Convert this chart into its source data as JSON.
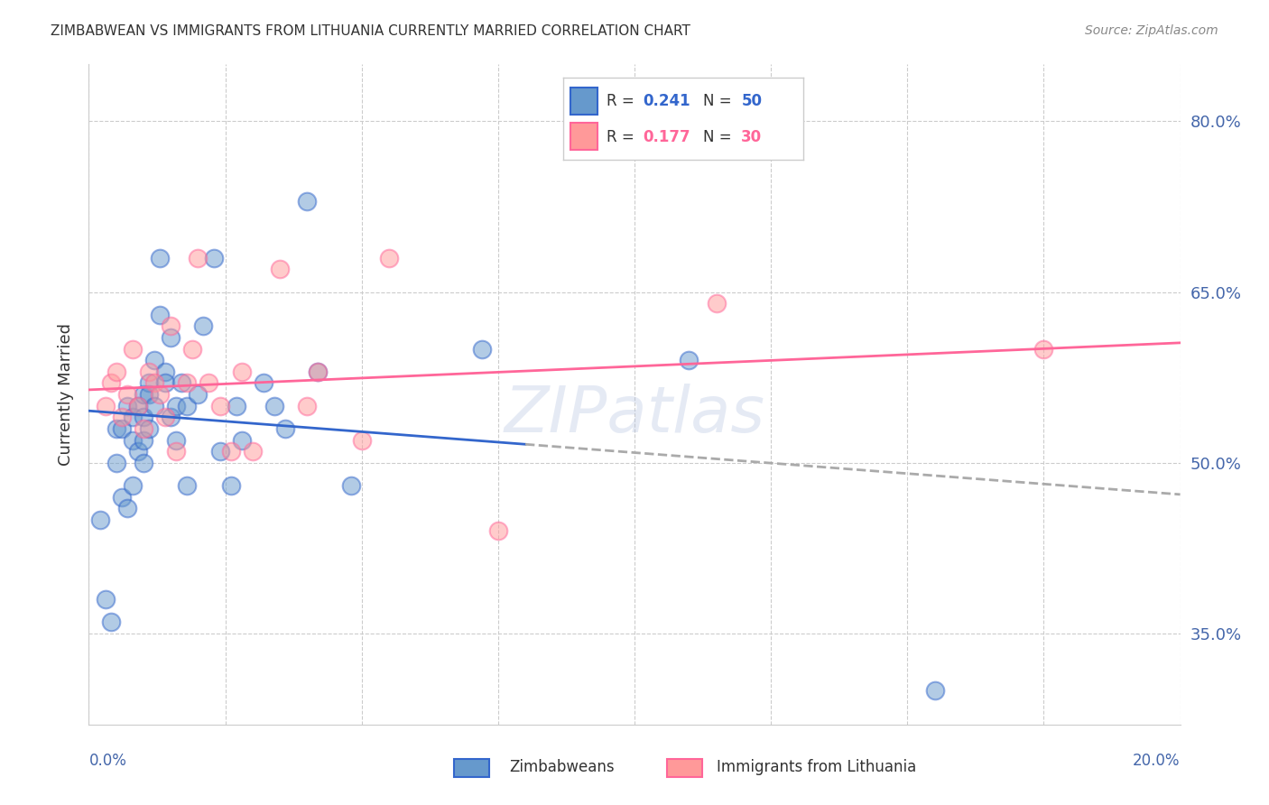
{
  "title": "ZIMBABWEAN VS IMMIGRANTS FROM LITHUANIA CURRENTLY MARRIED CORRELATION CHART",
  "source": "Source: ZipAtlas.com",
  "ylabel": "Currently Married",
  "yticks": [
    0.35,
    0.5,
    0.65,
    0.8
  ],
  "ytick_labels": [
    "35.0%",
    "50.0%",
    "65.0%",
    "80.0%"
  ],
  "xlim": [
    0.0,
    0.2
  ],
  "ylim": [
    0.27,
    0.85
  ],
  "legend_R1": "0.241",
  "legend_N1": "50",
  "legend_R2": "0.177",
  "legend_N2": "30",
  "blue_color": "#6699CC",
  "pink_color": "#FF9999",
  "line_blue": "#3366CC",
  "line_pink": "#FF6699",
  "axis_color": "#4466AA",
  "zimbabwean_x": [
    0.002,
    0.003,
    0.004,
    0.005,
    0.005,
    0.006,
    0.006,
    0.007,
    0.007,
    0.008,
    0.008,
    0.008,
    0.009,
    0.009,
    0.01,
    0.01,
    0.01,
    0.01,
    0.011,
    0.011,
    0.011,
    0.012,
    0.012,
    0.013,
    0.013,
    0.014,
    0.014,
    0.015,
    0.015,
    0.016,
    0.016,
    0.017,
    0.018,
    0.018,
    0.02,
    0.021,
    0.023,
    0.024,
    0.026,
    0.027,
    0.028,
    0.032,
    0.034,
    0.036,
    0.04,
    0.042,
    0.048,
    0.072,
    0.11,
    0.155
  ],
  "zimbabwean_y": [
    0.45,
    0.38,
    0.36,
    0.5,
    0.53,
    0.47,
    0.53,
    0.55,
    0.46,
    0.54,
    0.52,
    0.48,
    0.55,
    0.51,
    0.56,
    0.54,
    0.5,
    0.52,
    0.57,
    0.53,
    0.56,
    0.59,
    0.55,
    0.63,
    0.68,
    0.58,
    0.57,
    0.54,
    0.61,
    0.52,
    0.55,
    0.57,
    0.48,
    0.55,
    0.56,
    0.62,
    0.68,
    0.51,
    0.48,
    0.55,
    0.52,
    0.57,
    0.55,
    0.53,
    0.73,
    0.58,
    0.48,
    0.6,
    0.59,
    0.3
  ],
  "lithuania_x": [
    0.003,
    0.004,
    0.005,
    0.006,
    0.007,
    0.008,
    0.009,
    0.01,
    0.011,
    0.012,
    0.013,
    0.014,
    0.015,
    0.016,
    0.018,
    0.019,
    0.02,
    0.022,
    0.024,
    0.026,
    0.028,
    0.03,
    0.035,
    0.04,
    0.042,
    0.05,
    0.055,
    0.075,
    0.115,
    0.175
  ],
  "lithuania_y": [
    0.55,
    0.57,
    0.58,
    0.54,
    0.56,
    0.6,
    0.55,
    0.53,
    0.58,
    0.57,
    0.56,
    0.54,
    0.62,
    0.51,
    0.57,
    0.6,
    0.68,
    0.57,
    0.55,
    0.51,
    0.58,
    0.51,
    0.67,
    0.55,
    0.58,
    0.52,
    0.68,
    0.44,
    0.64,
    0.6
  ]
}
